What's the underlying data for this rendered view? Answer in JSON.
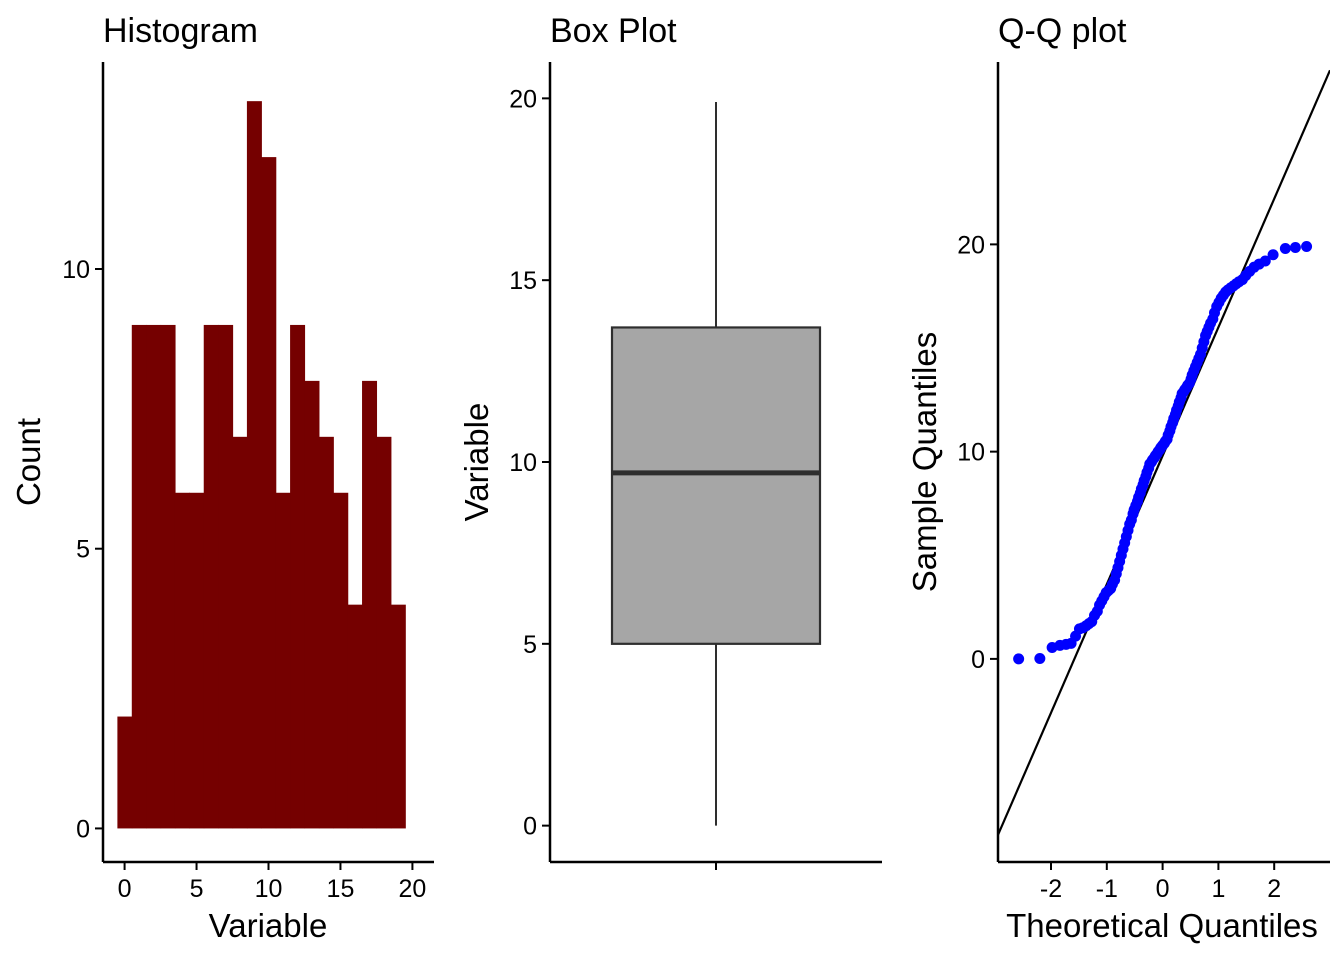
{
  "chart_data": [
    {
      "type": "bar",
      "title": "Histogram",
      "xlabel": "Variable",
      "ylabel": "Count",
      "xlim": [
        -1.5,
        21.5
      ],
      "ylim": [
        -0.6,
        13.7
      ],
      "xticks": [
        0,
        5,
        10,
        15,
        20
      ],
      "yticks": [
        0,
        5,
        10
      ],
      "bin_width": 1.0,
      "bins": [
        {
          "x0": -0.5,
          "count": 2
        },
        {
          "x0": 0.5,
          "count": 9
        },
        {
          "x0": 1.5,
          "count": 9
        },
        {
          "x0": 2.5,
          "count": 9
        },
        {
          "x0": 3.5,
          "count": 6
        },
        {
          "x0": 4.5,
          "count": 6
        },
        {
          "x0": 5.5,
          "count": 9
        },
        {
          "x0": 6.5,
          "count": 9
        },
        {
          "x0": 7.5,
          "count": 7
        },
        {
          "x0": 8.5,
          "count": 13
        },
        {
          "x0": 9.5,
          "count": 12
        },
        {
          "x0": 10.5,
          "count": 6
        },
        {
          "x0": 11.5,
          "count": 9
        },
        {
          "x0": 12.5,
          "count": 8
        },
        {
          "x0": 13.5,
          "count": 7
        },
        {
          "x0": 14.5,
          "count": 6
        },
        {
          "x0": 15.5,
          "count": 4
        },
        {
          "x0": 16.5,
          "count": 8
        },
        {
          "x0": 17.5,
          "count": 7
        },
        {
          "x0": 18.5,
          "count": 4
        }
      ],
      "fill_color": "#750000"
    },
    {
      "type": "box",
      "title": "Box Plot",
      "xlabel": "",
      "ylabel": "Variable",
      "ylim": [
        -1,
        21
      ],
      "yticks": [
        0,
        5,
        10,
        15,
        20
      ],
      "box": {
        "min": 0.0,
        "q1": 5.0,
        "median": 9.7,
        "q3": 13.7,
        "max": 19.9
      },
      "fill_color": "#a6a6a6",
      "line_color": "#2e2e2e"
    },
    {
      "type": "scatter",
      "title": "Q-Q plot",
      "xlabel": "Theoretical Quantiles",
      "ylabel": "Sample Quantiles",
      "xlim": [
        -2.95,
        3.0
      ],
      "ylim": [
        -9.8,
        28.8
      ],
      "xticks": [
        -2,
        -1,
        0,
        1,
        2
      ],
      "yticks": [
        0,
        10,
        20
      ],
      "reference_line": {
        "slope": 6.2,
        "intercept": 9.8
      },
      "point_color": "#0000ff",
      "line_color": "#000000",
      "points": [
        [
          -2.58,
          0.0
        ],
        [
          -2.2,
          0.02
        ],
        [
          -1.98,
          0.55
        ],
        [
          -1.84,
          0.65
        ],
        [
          -1.73,
          0.7
        ],
        [
          -1.64,
          0.75
        ],
        [
          -1.56,
          1.1
        ],
        [
          -1.49,
          1.45
        ],
        [
          -1.43,
          1.5
        ],
        [
          -1.37,
          1.6
        ],
        [
          -1.32,
          1.7
        ],
        [
          -1.27,
          1.8
        ],
        [
          -1.22,
          2.1
        ],
        [
          -1.17,
          2.3
        ],
        [
          -1.13,
          2.6
        ],
        [
          -1.09,
          2.8
        ],
        [
          -1.05,
          3.0
        ],
        [
          -1.01,
          3.2
        ],
        [
          -0.97,
          3.3
        ],
        [
          -0.93,
          3.4
        ],
        [
          -0.9,
          3.6
        ],
        [
          -0.86,
          3.8
        ],
        [
          -0.83,
          4.1
        ],
        [
          -0.8,
          4.4
        ],
        [
          -0.77,
          4.7
        ],
        [
          -0.74,
          5.0
        ],
        [
          -0.71,
          5.3
        ],
        [
          -0.68,
          5.6
        ],
        [
          -0.65,
          5.9
        ],
        [
          -0.62,
          6.2
        ],
        [
          -0.59,
          6.5
        ],
        [
          -0.56,
          6.7
        ],
        [
          -0.53,
          7.0
        ],
        [
          -0.51,
          7.2
        ],
        [
          -0.48,
          7.4
        ],
        [
          -0.45,
          7.6
        ],
        [
          -0.43,
          7.8
        ],
        [
          -0.4,
          8.0
        ],
        [
          -0.38,
          8.2
        ],
        [
          -0.35,
          8.4
        ],
        [
          -0.33,
          8.6
        ],
        [
          -0.3,
          8.8
        ],
        [
          -0.28,
          9.0
        ],
        [
          -0.25,
          9.2
        ],
        [
          -0.23,
          9.4
        ],
        [
          -0.2,
          9.5
        ],
        [
          -0.18,
          9.6
        ],
        [
          -0.15,
          9.7
        ],
        [
          -0.13,
          9.8
        ],
        [
          -0.1,
          9.9
        ],
        [
          -0.08,
          10.0
        ],
        [
          -0.05,
          10.1
        ],
        [
          -0.03,
          10.2
        ],
        [
          0.0,
          10.3
        ],
        [
          0.03,
          10.4
        ],
        [
          0.05,
          10.5
        ],
        [
          0.08,
          10.6
        ],
        [
          0.1,
          10.8
        ],
        [
          0.13,
          11.0
        ],
        [
          0.15,
          11.2
        ],
        [
          0.18,
          11.4
        ],
        [
          0.2,
          11.6
        ],
        [
          0.23,
          11.8
        ],
        [
          0.25,
          12.0
        ],
        [
          0.28,
          12.2
        ],
        [
          0.3,
          12.4
        ],
        [
          0.33,
          12.6
        ],
        [
          0.35,
          12.8
        ],
        [
          0.38,
          12.9
        ],
        [
          0.4,
          13.0
        ],
        [
          0.43,
          13.1
        ],
        [
          0.45,
          13.2
        ],
        [
          0.48,
          13.3
        ],
        [
          0.51,
          13.5
        ],
        [
          0.53,
          13.7
        ],
        [
          0.56,
          13.9
        ],
        [
          0.59,
          14.1
        ],
        [
          0.62,
          14.3
        ],
        [
          0.65,
          14.5
        ],
        [
          0.68,
          14.7
        ],
        [
          0.71,
          15.0
        ],
        [
          0.74,
          15.3
        ],
        [
          0.77,
          15.6
        ],
        [
          0.8,
          15.8
        ],
        [
          0.83,
          16.0
        ],
        [
          0.86,
          16.2
        ],
        [
          0.9,
          16.4
        ],
        [
          0.93,
          16.7
        ],
        [
          0.97,
          17.0
        ],
        [
          1.01,
          17.2
        ],
        [
          1.05,
          17.4
        ],
        [
          1.09,
          17.55
        ],
        [
          1.13,
          17.7
        ],
        [
          1.17,
          17.8
        ],
        [
          1.22,
          17.9
        ],
        [
          1.27,
          18.0
        ],
        [
          1.32,
          18.1
        ],
        [
          1.37,
          18.2
        ],
        [
          1.43,
          18.3
        ],
        [
          1.49,
          18.5
        ],
        [
          1.56,
          18.7
        ],
        [
          1.64,
          18.9
        ],
        [
          1.73,
          19.05
        ],
        [
          1.84,
          19.2
        ],
        [
          1.98,
          19.5
        ],
        [
          2.2,
          19.8
        ],
        [
          2.38,
          19.85
        ],
        [
          2.58,
          19.9
        ]
      ]
    }
  ]
}
